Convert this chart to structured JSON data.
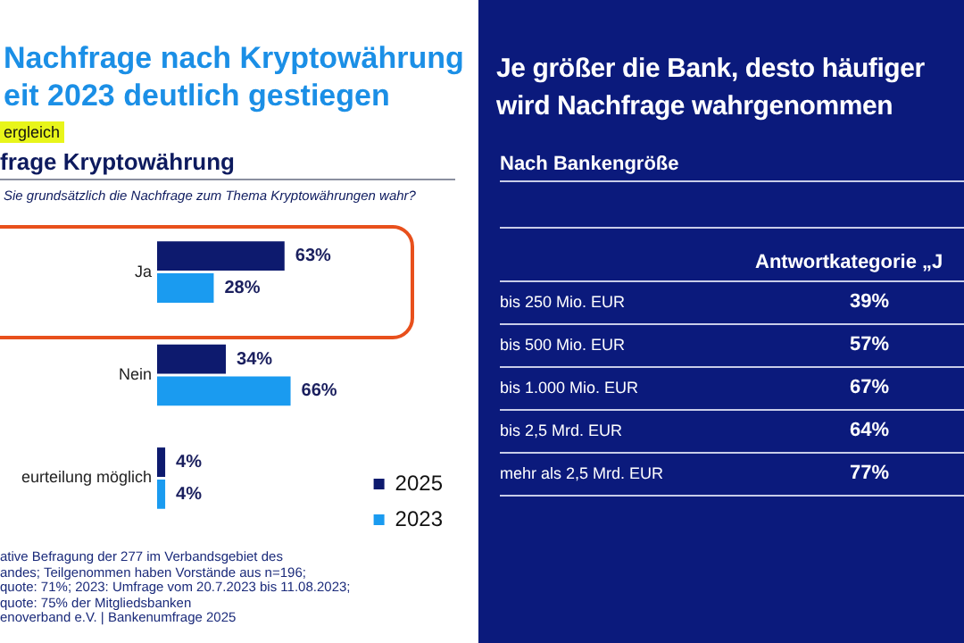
{
  "chart_data": [
    {
      "type": "bar",
      "orientation": "horizontal",
      "title": "Nachfrage nach Kryptowährung\neit 2023 deutlich gestiegen",
      "subtitle": "frage Kryptowährung",
      "annotations": [
        "ergleich",
        "Sie grundsätzlich die Nachfrage zum Thema Kryptowährungen wahr?",
        "ative Befragung der 277 im Verbandsgebiet des",
        "andes; Teilgenommen haben Vorstände aus n=196;",
        "quote: 71%; 2023: Umfrage vom 20.7.2023 bis 11.08.2023;",
        "quote: 75% der Mitgliedsbanken",
        "enoverband e.V. | Bankenumfrage 2025"
      ],
      "categories": [
        "Ja",
        "Nein",
        "eurteilung möglich"
      ],
      "series": [
        {
          "name": "2025",
          "color": "#0d1a6e",
          "values": [
            63,
            34,
            4
          ],
          "value_labels": [
            "63%",
            "34%",
            "4%"
          ]
        },
        {
          "name": "2023",
          "color": "#1a9bf0",
          "values": [
            28,
            66,
            4
          ],
          "value_labels": [
            "28%",
            "66%",
            "4%"
          ]
        }
      ],
      "legend": "bottom right",
      "grid": false,
      "tick_labels": "y"
    },
    {
      "type": "other",
      "title": "Je größer die Bank, desto häufiger wird Nachfrage wahrgenommen",
      "subtitle": "Nach Bankengröße",
      "annotations": [
        "Antwortkategorie „J"
      ],
      "categories": [
        "bis 250 Mio. EUR",
        "bis 500 Mio. EUR",
        "bis 1.000 Mio. EUR",
        "bis 2,5 Mrd. EUR",
        "mehr als 2,5 Mrd. EUR"
      ],
      "values": [
        39,
        57,
        67,
        64,
        77
      ],
      "value_labels": [
        "39%",
        "57%",
        "67%",
        "64%",
        "77%"
      ]
    }
  ]
}
